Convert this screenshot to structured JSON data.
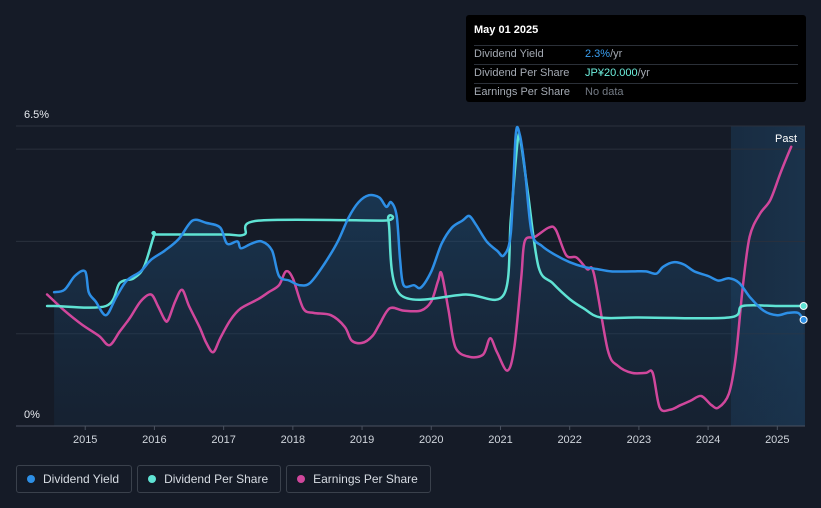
{
  "tooltip": {
    "date": "May 01 2025",
    "rows": [
      {
        "label": "Dividend Yield",
        "value": "2.3%",
        "unit": " /yr"
      },
      {
        "label": "Dividend Per Share",
        "value": "JP¥20.000",
        "unit": " /yr"
      },
      {
        "label": "Earnings Per Share",
        "value": "No data",
        "unit": ""
      }
    ]
  },
  "legend": [
    {
      "label": "Dividend Yield",
      "color": "#2d8fe6"
    },
    {
      "label": "Dividend Per Share",
      "color": "#5fe3d4"
    },
    {
      "label": "Earnings Per Share",
      "color": "#d0479c"
    }
  ],
  "chart_data": {
    "type": "line",
    "y_axis": {
      "min": 0,
      "max": 6.5,
      "min_label": "0%",
      "max_label": "6.5%"
    },
    "x_axis": {
      "min": 2014.0,
      "max": 2025.4,
      "ticks": [
        "2015",
        "2016",
        "2017",
        "2018",
        "2019",
        "2020",
        "2021",
        "2022",
        "2023",
        "2024",
        "2025"
      ]
    },
    "past_region": {
      "start": 2024.33,
      "label": "Past"
    },
    "series": [
      {
        "name": "Dividend Yield",
        "color": "#2d8fe6",
        "area": true,
        "points": [
          [
            2014.55,
            2.9
          ],
          [
            2014.7,
            2.95
          ],
          [
            2014.85,
            3.25
          ],
          [
            2015.0,
            3.35
          ],
          [
            2015.05,
            2.9
          ],
          [
            2015.15,
            2.7
          ],
          [
            2015.3,
            2.4
          ],
          [
            2015.45,
            2.8
          ],
          [
            2015.6,
            3.15
          ],
          [
            2015.8,
            3.35
          ],
          [
            2015.95,
            3.6
          ],
          [
            2016.15,
            3.8
          ],
          [
            2016.35,
            4.05
          ],
          [
            2016.55,
            4.45
          ],
          [
            2016.75,
            4.4
          ],
          [
            2016.95,
            4.3
          ],
          [
            2017.05,
            3.95
          ],
          [
            2017.2,
            4.0
          ],
          [
            2017.25,
            3.85
          ],
          [
            2017.4,
            3.95
          ],
          [
            2017.55,
            4.0
          ],
          [
            2017.7,
            3.8
          ],
          [
            2017.8,
            3.25
          ],
          [
            2017.95,
            3.15
          ],
          [
            2018.1,
            3.05
          ],
          [
            2018.25,
            3.1
          ],
          [
            2018.45,
            3.5
          ],
          [
            2018.65,
            4.0
          ],
          [
            2018.8,
            4.5
          ],
          [
            2018.95,
            4.85
          ],
          [
            2019.1,
            5.0
          ],
          [
            2019.25,
            4.95
          ],
          [
            2019.35,
            4.75
          ],
          [
            2019.42,
            4.85
          ],
          [
            2019.5,
            4.55
          ],
          [
            2019.55,
            3.6
          ],
          [
            2019.6,
            3.05
          ],
          [
            2019.75,
            3.05
          ],
          [
            2019.85,
            3.0
          ],
          [
            2020.0,
            3.35
          ],
          [
            2020.15,
            3.95
          ],
          [
            2020.3,
            4.3
          ],
          [
            2020.45,
            4.45
          ],
          [
            2020.55,
            4.55
          ],
          [
            2020.65,
            4.35
          ],
          [
            2020.8,
            4.0
          ],
          [
            2020.95,
            3.8
          ],
          [
            2021.05,
            3.7
          ],
          [
            2021.15,
            4.2
          ],
          [
            2021.22,
            6.3
          ],
          [
            2021.28,
            6.3
          ],
          [
            2021.35,
            5.6
          ],
          [
            2021.45,
            4.2
          ],
          [
            2021.6,
            3.9
          ],
          [
            2021.8,
            3.7
          ],
          [
            2022.0,
            3.55
          ],
          [
            2022.2,
            3.45
          ],
          [
            2022.4,
            3.4
          ],
          [
            2022.6,
            3.35
          ],
          [
            2022.9,
            3.35
          ],
          [
            2023.1,
            3.35
          ],
          [
            2023.25,
            3.3
          ],
          [
            2023.35,
            3.45
          ],
          [
            2023.5,
            3.55
          ],
          [
            2023.65,
            3.5
          ],
          [
            2023.8,
            3.35
          ],
          [
            2024.0,
            3.25
          ],
          [
            2024.15,
            3.15
          ],
          [
            2024.3,
            3.2
          ],
          [
            2024.45,
            3.1
          ],
          [
            2024.6,
            2.8
          ],
          [
            2024.8,
            2.5
          ],
          [
            2025.0,
            2.4
          ],
          [
            2025.15,
            2.45
          ],
          [
            2025.3,
            2.45
          ],
          [
            2025.38,
            2.3
          ]
        ]
      },
      {
        "name": "Dividend Per Share",
        "color": "#5fe3d4",
        "area": false,
        "points": [
          [
            2014.45,
            2.6
          ],
          [
            2014.55,
            2.6
          ],
          [
            2015.3,
            2.6
          ],
          [
            2015.5,
            3.1
          ],
          [
            2015.7,
            3.2
          ],
          [
            2015.85,
            3.45
          ],
          [
            2016.0,
            4.15
          ],
          [
            2016.05,
            4.15
          ],
          [
            2017.0,
            4.15
          ],
          [
            2017.3,
            4.15
          ],
          [
            2017.5,
            4.45
          ],
          [
            2019.3,
            4.45
          ],
          [
            2019.38,
            4.45
          ],
          [
            2019.55,
            2.85
          ],
          [
            2020.5,
            2.85
          ],
          [
            2021.05,
            2.85
          ],
          [
            2021.15,
            4.5
          ],
          [
            2021.25,
            6.2
          ],
          [
            2021.3,
            6.1
          ],
          [
            2021.4,
            5.0
          ],
          [
            2021.55,
            3.45
          ],
          [
            2021.75,
            3.1
          ],
          [
            2022.0,
            2.75
          ],
          [
            2022.2,
            2.55
          ],
          [
            2022.45,
            2.35
          ],
          [
            2023.0,
            2.35
          ],
          [
            2024.3,
            2.35
          ],
          [
            2024.5,
            2.6
          ],
          [
            2025.0,
            2.6
          ],
          [
            2025.38,
            2.6
          ]
        ]
      },
      {
        "name": "Earnings Per Share",
        "color": "#d0479c",
        "area": false,
        "points": [
          [
            2014.45,
            2.85
          ],
          [
            2014.7,
            2.5
          ],
          [
            2014.95,
            2.2
          ],
          [
            2015.2,
            1.95
          ],
          [
            2015.35,
            1.75
          ],
          [
            2015.5,
            2.05
          ],
          [
            2015.65,
            2.35
          ],
          [
            2015.8,
            2.7
          ],
          [
            2015.95,
            2.85
          ],
          [
            2016.05,
            2.6
          ],
          [
            2016.15,
            2.3
          ],
          [
            2016.2,
            2.3
          ],
          [
            2016.3,
            2.7
          ],
          [
            2016.4,
            2.95
          ],
          [
            2016.5,
            2.6
          ],
          [
            2016.65,
            2.15
          ],
          [
            2016.75,
            1.8
          ],
          [
            2016.85,
            1.6
          ],
          [
            2016.95,
            1.9
          ],
          [
            2017.1,
            2.3
          ],
          [
            2017.25,
            2.55
          ],
          [
            2017.5,
            2.75
          ],
          [
            2017.65,
            2.9
          ],
          [
            2017.8,
            3.05
          ],
          [
            2017.9,
            3.35
          ],
          [
            2018.0,
            3.2
          ],
          [
            2018.15,
            2.55
          ],
          [
            2018.3,
            2.45
          ],
          [
            2018.55,
            2.4
          ],
          [
            2018.75,
            2.15
          ],
          [
            2018.85,
            1.85
          ],
          [
            2019.0,
            1.8
          ],
          [
            2019.15,
            1.95
          ],
          [
            2019.25,
            2.2
          ],
          [
            2019.4,
            2.55
          ],
          [
            2019.6,
            2.5
          ],
          [
            2019.85,
            2.5
          ],
          [
            2020.0,
            2.7
          ],
          [
            2020.1,
            3.15
          ],
          [
            2020.15,
            3.3
          ],
          [
            2020.25,
            2.5
          ],
          [
            2020.35,
            1.7
          ],
          [
            2020.55,
            1.5
          ],
          [
            2020.75,
            1.55
          ],
          [
            2020.85,
            1.9
          ],
          [
            2020.95,
            1.6
          ],
          [
            2021.1,
            1.2
          ],
          [
            2021.2,
            1.7
          ],
          [
            2021.3,
            3.2
          ],
          [
            2021.35,
            4.0
          ],
          [
            2021.5,
            4.1
          ],
          [
            2021.7,
            4.3
          ],
          [
            2021.8,
            4.25
          ],
          [
            2021.95,
            3.7
          ],
          [
            2022.1,
            3.65
          ],
          [
            2022.25,
            3.4
          ],
          [
            2022.35,
            3.3
          ],
          [
            2022.55,
            1.65
          ],
          [
            2022.7,
            1.3
          ],
          [
            2022.9,
            1.15
          ],
          [
            2023.1,
            1.15
          ],
          [
            2023.2,
            1.15
          ],
          [
            2023.3,
            0.4
          ],
          [
            2023.45,
            0.35
          ],
          [
            2023.6,
            0.45
          ],
          [
            2023.75,
            0.55
          ],
          [
            2023.9,
            0.65
          ],
          [
            2024.05,
            0.45
          ],
          [
            2024.15,
            0.4
          ],
          [
            2024.3,
            0.7
          ],
          [
            2024.4,
            1.5
          ],
          [
            2024.5,
            3.0
          ],
          [
            2024.6,
            4.1
          ],
          [
            2024.75,
            4.6
          ],
          [
            2024.9,
            4.9
          ],
          [
            2025.05,
            5.5
          ],
          [
            2025.2,
            6.05
          ]
        ]
      }
    ]
  }
}
